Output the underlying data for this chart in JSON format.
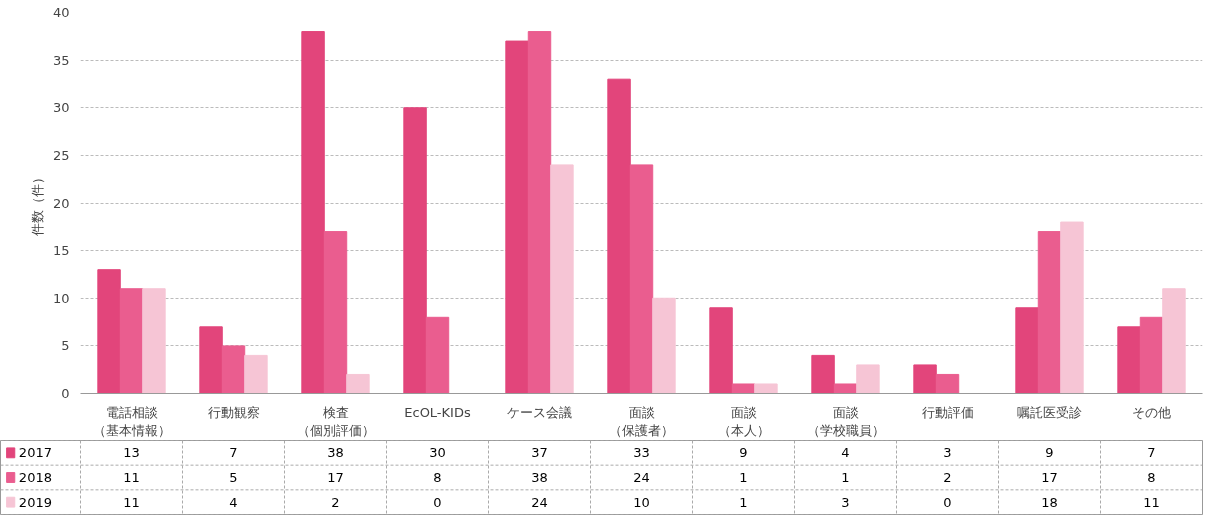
{
  "chart_data": {
    "type": "bar",
    "ylabel": "件数（件）",
    "categories": [
      "電話相談（基本情報）",
      "行動観察",
      "検査（個別評価）",
      "EcOL-KIDs",
      "ケース会議",
      "面談（保護者）",
      "面談（本人）",
      "面談（学校職員）",
      "行動評価",
      "嘱託医受診",
      "その他"
    ],
    "series": [
      {
        "name": "2017",
        "color": "#e2457b",
        "values": [
          13,
          7,
          38,
          30,
          37,
          33,
          9,
          4,
          3,
          9,
          7
        ]
      },
      {
        "name": "2018",
        "color": "#ea5d8f",
        "values": [
          11,
          5,
          17,
          8,
          38,
          24,
          1,
          1,
          2,
          17,
          8
        ]
      },
      {
        "name": "2019",
        "color": "#f6c5d5",
        "values": [
          11,
          4,
          2,
          0,
          24,
          10,
          1,
          3,
          0,
          18,
          11
        ]
      }
    ],
    "ylim": [
      0,
      40
    ],
    "yticks": [
      0,
      5,
      10,
      15,
      20,
      25,
      30,
      35,
      40
    ],
    "grid": "y",
    "legend": "bottom left",
    "data_labels": true
  }
}
